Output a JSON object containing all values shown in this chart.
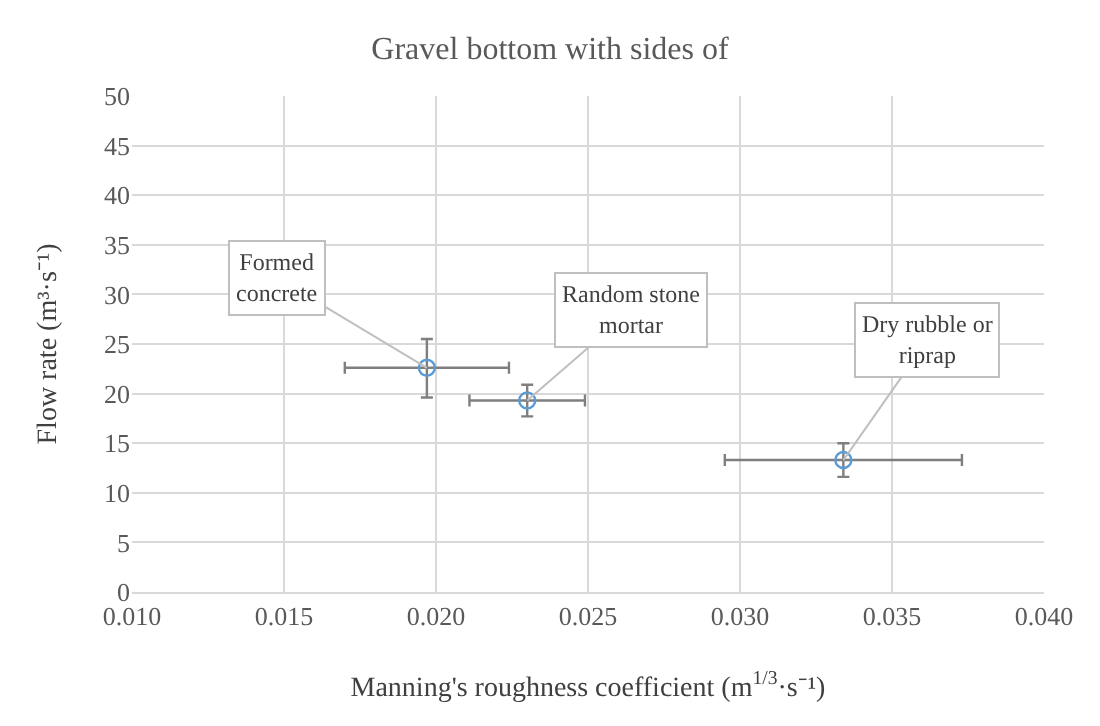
{
  "chart_data": {
    "type": "scatter",
    "title": "Gravel bottom with sides of",
    "xlabel": "Manning's roughness coefficient (m$^{1/3}$·s⁻¹)",
    "ylabel": "Flow rate (m³·s⁻¹)",
    "x": [
      0.0197,
      0.023,
      0.0334
    ],
    "series": [
      {
        "color": "#5b9bd5",
        "values": [
          22.6,
          19.3,
          13.3
        ],
        "errors": [
          [
            19.6,
            25.5
          ],
          [
            17.7,
            20.9
          ],
          [
            11.6,
            15.0
          ]
        ],
        "xerrors": [
          [
            0.017,
            0.0224
          ],
          [
            0.0211,
            0.0249
          ],
          [
            0.0295,
            0.0373
          ]
        ]
      }
    ],
    "annotations": [
      {
        "text": "Formed\nconcrete",
        "x": 0.0197,
        "y": 22.6
      },
      {
        "text": "Random stone\nmortar",
        "x": 0.023,
        "y": 19.3
      },
      {
        "text": "Dry rubble or\nriprap",
        "x": 0.0334,
        "y": 13.3
      }
    ],
    "xlim": [
      0.01,
      0.04
    ],
    "xticks": [
      {
        "value": 0.01,
        "label": "0.010"
      },
      {
        "value": 0.015,
        "label": "0.015"
      },
      {
        "value": 0.02,
        "label": "0.020"
      },
      {
        "value": 0.025,
        "label": "0.025"
      },
      {
        "value": 0.03,
        "label": "0.030"
      },
      {
        "value": 0.035,
        "label": "0.035"
      },
      {
        "value": 0.04,
        "label": "0.040"
      }
    ],
    "ylim": [
      0,
      50
    ],
    "yticks": [
      0,
      5,
      10,
      15,
      20,
      25,
      30,
      35,
      40,
      45,
      50
    ],
    "grid": true,
    "marker": "circle"
  }
}
